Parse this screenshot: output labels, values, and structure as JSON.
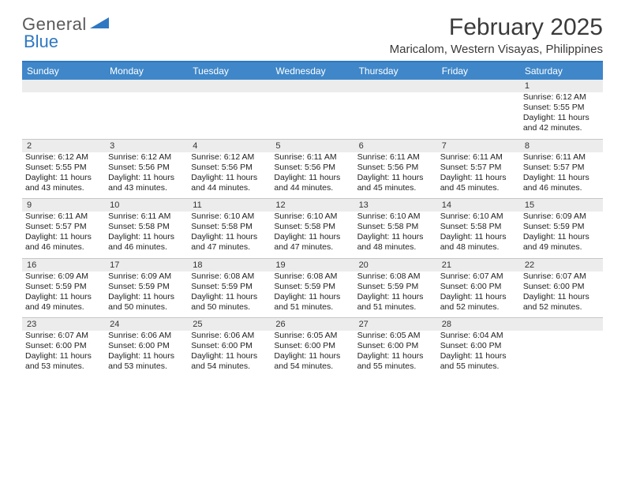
{
  "logo": {
    "text1": "General",
    "text2": "Blue"
  },
  "title": "February 2025",
  "location": "Maricalom, Western Visayas, Philippines",
  "colors": {
    "header_bar": "#3f87c9",
    "top_border": "#2e78c2",
    "daynum_bg": "#ececec",
    "text": "#222222",
    "logo_gray": "#5a5a5a",
    "logo_blue": "#2e78c2"
  },
  "day_names": [
    "Sunday",
    "Monday",
    "Tuesday",
    "Wednesday",
    "Thursday",
    "Friday",
    "Saturday"
  ],
  "weeks": [
    [
      null,
      null,
      null,
      null,
      null,
      null,
      {
        "n": "1",
        "sr": "6:12 AM",
        "ss": "5:55 PM",
        "dl": "11 hours and 42 minutes."
      }
    ],
    [
      {
        "n": "2",
        "sr": "6:12 AM",
        "ss": "5:55 PM",
        "dl": "11 hours and 43 minutes."
      },
      {
        "n": "3",
        "sr": "6:12 AM",
        "ss": "5:56 PM",
        "dl": "11 hours and 43 minutes."
      },
      {
        "n": "4",
        "sr": "6:12 AM",
        "ss": "5:56 PM",
        "dl": "11 hours and 44 minutes."
      },
      {
        "n": "5",
        "sr": "6:11 AM",
        "ss": "5:56 PM",
        "dl": "11 hours and 44 minutes."
      },
      {
        "n": "6",
        "sr": "6:11 AM",
        "ss": "5:56 PM",
        "dl": "11 hours and 45 minutes."
      },
      {
        "n": "7",
        "sr": "6:11 AM",
        "ss": "5:57 PM",
        "dl": "11 hours and 45 minutes."
      },
      {
        "n": "8",
        "sr": "6:11 AM",
        "ss": "5:57 PM",
        "dl": "11 hours and 46 minutes."
      }
    ],
    [
      {
        "n": "9",
        "sr": "6:11 AM",
        "ss": "5:57 PM",
        "dl": "11 hours and 46 minutes."
      },
      {
        "n": "10",
        "sr": "6:11 AM",
        "ss": "5:58 PM",
        "dl": "11 hours and 46 minutes."
      },
      {
        "n": "11",
        "sr": "6:10 AM",
        "ss": "5:58 PM",
        "dl": "11 hours and 47 minutes."
      },
      {
        "n": "12",
        "sr": "6:10 AM",
        "ss": "5:58 PM",
        "dl": "11 hours and 47 minutes."
      },
      {
        "n": "13",
        "sr": "6:10 AM",
        "ss": "5:58 PM",
        "dl": "11 hours and 48 minutes."
      },
      {
        "n": "14",
        "sr": "6:10 AM",
        "ss": "5:58 PM",
        "dl": "11 hours and 48 minutes."
      },
      {
        "n": "15",
        "sr": "6:09 AM",
        "ss": "5:59 PM",
        "dl": "11 hours and 49 minutes."
      }
    ],
    [
      {
        "n": "16",
        "sr": "6:09 AM",
        "ss": "5:59 PM",
        "dl": "11 hours and 49 minutes."
      },
      {
        "n": "17",
        "sr": "6:09 AM",
        "ss": "5:59 PM",
        "dl": "11 hours and 50 minutes."
      },
      {
        "n": "18",
        "sr": "6:08 AM",
        "ss": "5:59 PM",
        "dl": "11 hours and 50 minutes."
      },
      {
        "n": "19",
        "sr": "6:08 AM",
        "ss": "5:59 PM",
        "dl": "11 hours and 51 minutes."
      },
      {
        "n": "20",
        "sr": "6:08 AM",
        "ss": "5:59 PM",
        "dl": "11 hours and 51 minutes."
      },
      {
        "n": "21",
        "sr": "6:07 AM",
        "ss": "6:00 PM",
        "dl": "11 hours and 52 minutes."
      },
      {
        "n": "22",
        "sr": "6:07 AM",
        "ss": "6:00 PM",
        "dl": "11 hours and 52 minutes."
      }
    ],
    [
      {
        "n": "23",
        "sr": "6:07 AM",
        "ss": "6:00 PM",
        "dl": "11 hours and 53 minutes."
      },
      {
        "n": "24",
        "sr": "6:06 AM",
        "ss": "6:00 PM",
        "dl": "11 hours and 53 minutes."
      },
      {
        "n": "25",
        "sr": "6:06 AM",
        "ss": "6:00 PM",
        "dl": "11 hours and 54 minutes."
      },
      {
        "n": "26",
        "sr": "6:05 AM",
        "ss": "6:00 PM",
        "dl": "11 hours and 54 minutes."
      },
      {
        "n": "27",
        "sr": "6:05 AM",
        "ss": "6:00 PM",
        "dl": "11 hours and 55 minutes."
      },
      {
        "n": "28",
        "sr": "6:04 AM",
        "ss": "6:00 PM",
        "dl": "11 hours and 55 minutes."
      },
      null
    ]
  ],
  "labels": {
    "sunrise": "Sunrise: ",
    "sunset": "Sunset: ",
    "daylight": "Daylight: "
  }
}
